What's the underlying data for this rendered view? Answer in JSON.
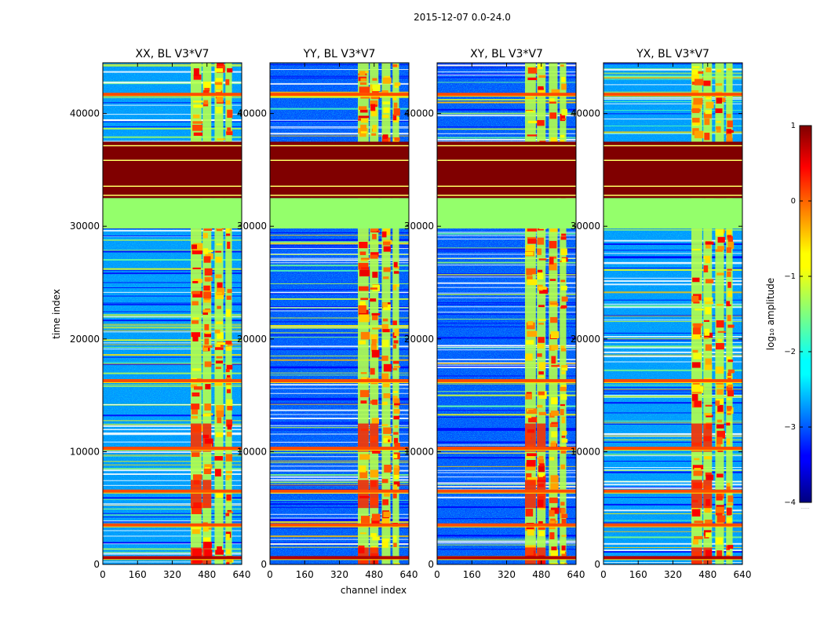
{
  "chart_data": {
    "type": "heatmap",
    "suptitle": "2015-12-07 0.0-24.0",
    "xlabel": "channel index",
    "ylabel": "time index",
    "xlim": [
      0,
      640
    ],
    "ylim": [
      0,
      44500
    ],
    "x_ticks": [
      0,
      160,
      320,
      480,
      640
    ],
    "x_tick_labels": [
      "0",
      "160",
      "320",
      "480",
      "640"
    ],
    "y_ticks": [
      0,
      10000,
      20000,
      30000,
      40000
    ],
    "y_tick_labels": [
      "0",
      "10000",
      "20000",
      "30000",
      "40000"
    ],
    "colormap": "jet",
    "colorbar": {
      "label": "log₁₀ amplitude",
      "range": [
        -4,
        1
      ],
      "ticks": [
        1,
        0,
        -1,
        -2,
        -3,
        -4
      ],
      "tick_labels": [
        "1",
        "0",
        "−1",
        "−2",
        "−3",
        "−4"
      ],
      "footnote": "......"
    },
    "panels": [
      {
        "title": "XX, BL V3*V7"
      },
      {
        "title": "YY, BL V3*V7"
      },
      {
        "title": "XY, BL V3*V7"
      },
      {
        "title": "YX, BL V3*V7"
      }
    ],
    "features": {
      "flagged_saturated_time_range": [
        32500,
        37500
      ],
      "flagged_constant_time_range": [
        29800,
        32500
      ],
      "bright_channel_columns": [
        [
          405,
          455
        ],
        [
          460,
          500
        ],
        [
          515,
          555
        ],
        [
          565,
          595
        ]
      ],
      "rfi_time_rows": [
        600,
        3500,
        6500,
        10300,
        16300,
        41700
      ]
    }
  }
}
